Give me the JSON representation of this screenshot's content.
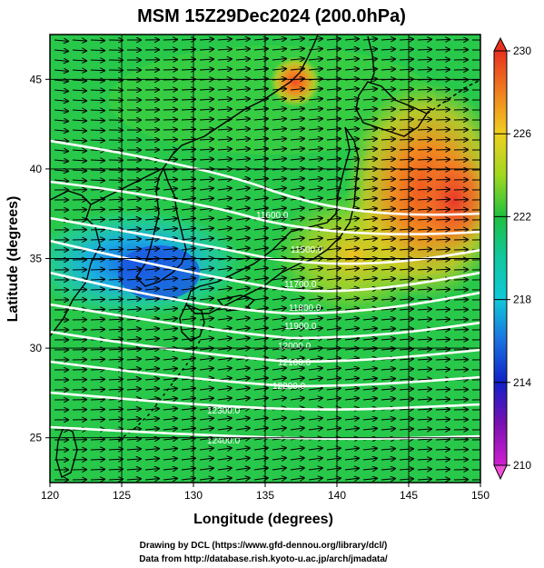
{
  "title": "MSM 15Z29Dec2024 (200.0hPa)",
  "xlabel": "Longitude (degrees)",
  "ylabel": "Latitude  (degrees)",
  "footer": {
    "line1": "Drawing by DCL (https://www.gfd-dennou.org/library/dcl/)",
    "line2": "Data from http://database.rish.kyoto-u.ac.jp/arch/jmadata/"
  },
  "colors": {
    "frame": "#000000",
    "contour": "#ffffff",
    "coast": "#000000",
    "arrow": "#000000"
  },
  "map": {
    "lon_range": [
      120,
      150
    ],
    "lat_range": [
      22.5,
      47.5
    ],
    "x_ticks": [
      {
        "value": 120,
        "label": "120"
      },
      {
        "value": 125,
        "label": "125"
      },
      {
        "value": 130,
        "label": "130"
      },
      {
        "value": 135,
        "label": "135"
      },
      {
        "value": 140,
        "label": "140"
      },
      {
        "value": 145,
        "label": "145"
      },
      {
        "value": 150,
        "label": "150"
      }
    ],
    "y_ticks": [
      {
        "value": 25,
        "label": "25"
      },
      {
        "value": 30,
        "label": "30"
      },
      {
        "value": 35,
        "label": "35"
      },
      {
        "value": 40,
        "label": "40"
      },
      {
        "value": 45,
        "label": "45"
      }
    ],
    "contour_labels": [
      "11600.0",
      "11500.0",
      "11700.0",
      "11800.0",
      "11900.0",
      "12000.0",
      "12100.0",
      "12200.0",
      "12300.0",
      "12400.0"
    ]
  },
  "colorbar": {
    "range": [
      210,
      230
    ],
    "ticks": [
      {
        "value": 230,
        "label": "230"
      },
      {
        "value": 226,
        "label": "226"
      },
      {
        "value": 222,
        "label": "222"
      },
      {
        "value": 218,
        "label": "218"
      },
      {
        "value": 214,
        "label": "214"
      },
      {
        "value": 210,
        "label": "210"
      }
    ]
  }
}
